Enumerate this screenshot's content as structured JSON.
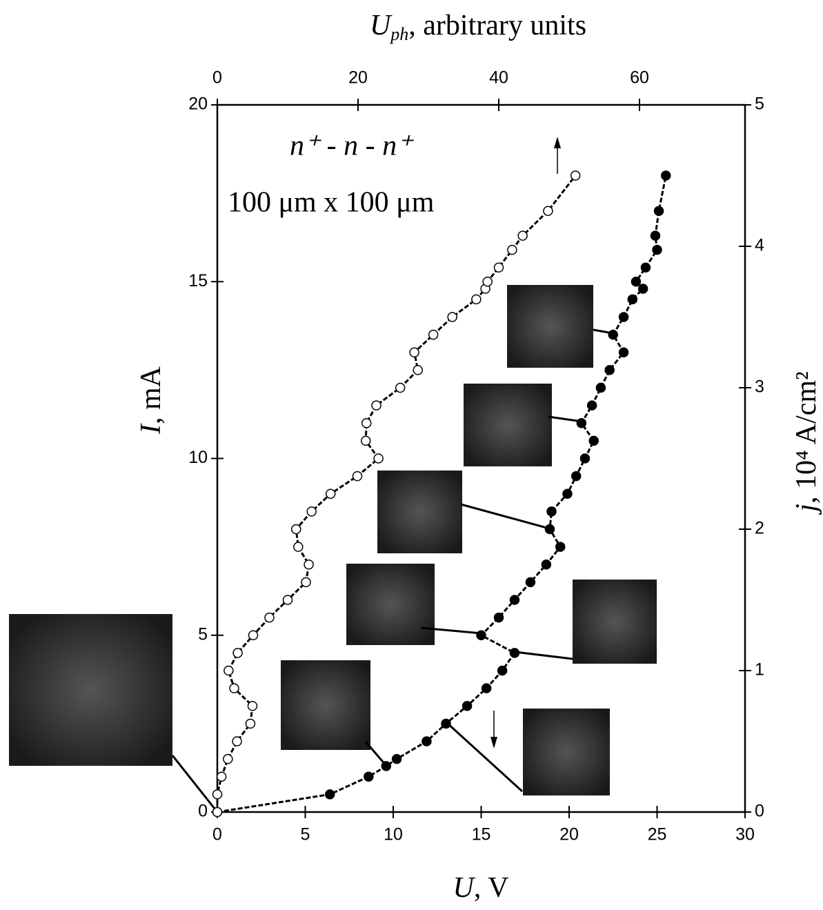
{
  "chart_data": {
    "type": "line",
    "xlabel": {
      "symbol": "U",
      "rest": ", V"
    },
    "x2label": {
      "symbol": "U",
      "subscript": "ph",
      "rest": ", arbitrary units"
    },
    "ylabel": {
      "symbol": "I",
      "rest": ", mA"
    },
    "y2label": {
      "symbol": "j",
      "rest": ", 10⁴ A/cm²"
    },
    "annotations": [
      "n⁺ - n - n⁺",
      "100 μm x 100 μm"
    ],
    "xlim": [
      0,
      30
    ],
    "xticks": [
      0,
      5,
      10,
      15,
      20,
      25,
      30
    ],
    "x2lim": [
      0,
      75
    ],
    "x2ticks": [
      0,
      20,
      40,
      60
    ],
    "ylim": [
      0,
      20
    ],
    "yticks": [
      0,
      5,
      10,
      15,
      20
    ],
    "y2lim": [
      0,
      5
    ],
    "y2ticks": [
      0,
      1,
      2,
      3,
      4,
      5
    ],
    "series": [
      {
        "axis": "x",
        "color": "#000000",
        "marker_fill": "#000000",
        "x": [
          0,
          6.4,
          8.6,
          9.6,
          10.2,
          11.9,
          13.0,
          14.2,
          15.3,
          16.2,
          16.9,
          15.0,
          16.0,
          16.9,
          17.8,
          18.7,
          19.5,
          18.9,
          19.0,
          19.9,
          20.4,
          20.9,
          21.4,
          20.7,
          21.3,
          21.8,
          22.3,
          23.1,
          22.5,
          23.1,
          23.6,
          24.2,
          23.8,
          24.35,
          25.0,
          24.9,
          25.1,
          25.5
        ],
        "values": [
          0,
          0.5,
          1.0,
          1.3,
          1.5,
          2.0,
          2.5,
          3.0,
          3.5,
          4.0,
          4.5,
          5.0,
          5.5,
          6.0,
          6.5,
          7.0,
          7.5,
          8.0,
          8.5,
          9.0,
          9.5,
          10.0,
          10.5,
          11.0,
          11.5,
          12.0,
          12.5,
          13.0,
          13.5,
          14.0,
          14.5,
          14.8,
          15.0,
          15.4,
          15.9,
          16.3,
          17.0,
          18.0
        ]
      },
      {
        "axis": "x2",
        "color": "#000000",
        "marker_fill": "#ffffff",
        "x": [
          0,
          0,
          0.6,
          1.5,
          2.8,
          4.7,
          5.0,
          2.4,
          1.6,
          2.9,
          5.1,
          7.4,
          10.0,
          12.6,
          13.0,
          11.5,
          11.2,
          13.4,
          16.1,
          19.9,
          22.9,
          21.1,
          21.2,
          22.6,
          26.0,
          28.5,
          28.0,
          30.7,
          33.4,
          36.8,
          38.1,
          38.4,
          40.0,
          41.9,
          43.4,
          47.0,
          50.9
        ],
        "values": [
          0,
          0.5,
          1.0,
          1.5,
          2.0,
          2.5,
          3.0,
          3.5,
          4.0,
          4.5,
          5.0,
          5.5,
          6.0,
          6.5,
          7.0,
          7.5,
          8.0,
          8.5,
          9.0,
          9.5,
          10.0,
          10.5,
          11.0,
          11.5,
          12.0,
          12.5,
          13.0,
          13.5,
          14.0,
          14.5,
          14.8,
          15.0,
          15.4,
          15.9,
          16.3,
          17.0,
          18.0
        ]
      }
    ]
  }
}
